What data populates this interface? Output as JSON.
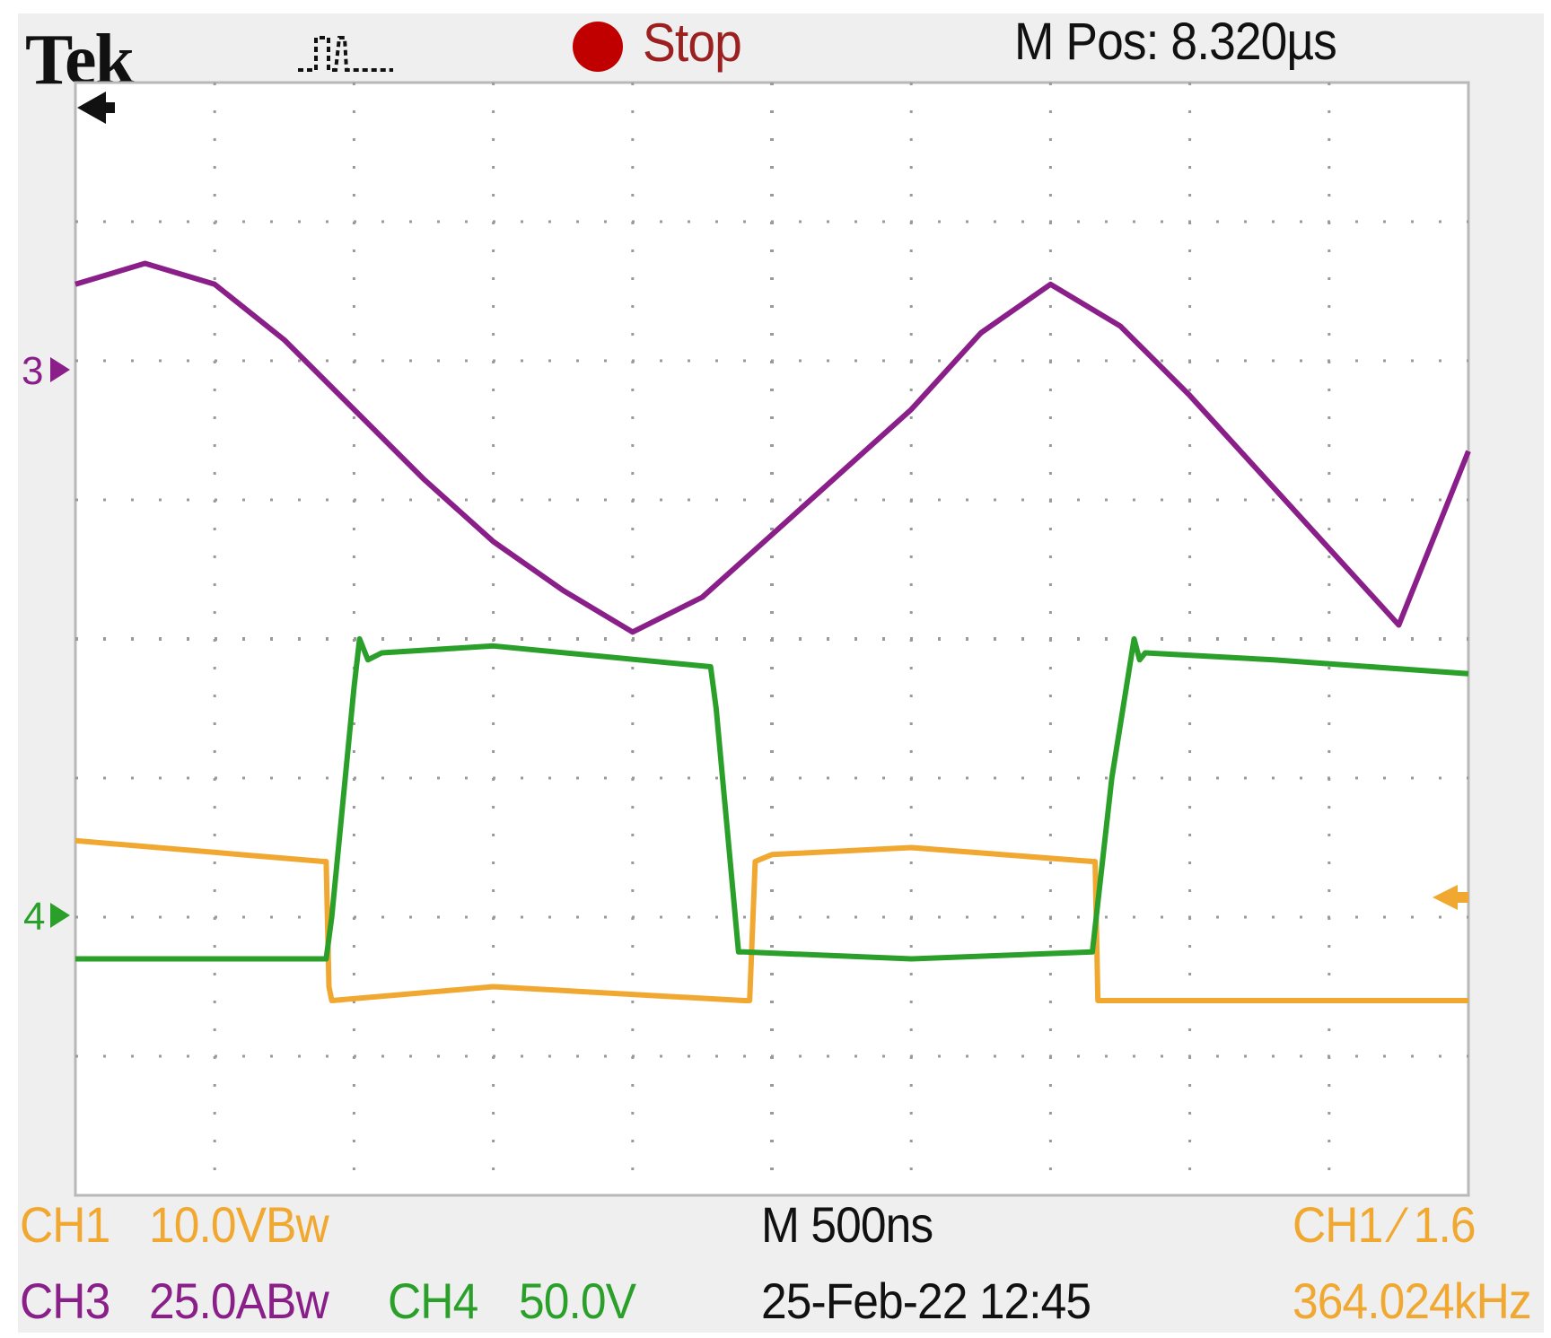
{
  "header": {
    "brand": "Tek",
    "acquisition_icon": "pulse-waveform-icon",
    "run_state": "Stop",
    "run_state_color": "#c00000",
    "horizontal_position": "M Pos: 8.320µs"
  },
  "footer": {
    "ch1_name": "CH1",
    "ch1_scale": "10.0VBw",
    "ch3_name": "CH3",
    "ch3_scale": "25.0ABw",
    "ch4_name": "CH4",
    "ch4_scale": "50.0V",
    "timebase": "M 500ns",
    "datetime": "25-Feb-22 12:45",
    "trigger": "CH1 ∕ 1.6",
    "frequency": "364.024kHz"
  },
  "markers": {
    "ch3_marker": "3",
    "ch4_marker": "4",
    "trigger_position_icon": "left-arrow-icon",
    "trigger_level_icon": "left-pointer-icon"
  },
  "colors": {
    "ch1": "#f0a830",
    "ch3": "#8a1f8a",
    "ch4": "#2aa02a",
    "grid": "#9a9a9a",
    "screen": "#ffffff",
    "bezel": "#efefef"
  },
  "chart_data": {
    "type": "line",
    "title": "",
    "xlabel": "",
    "ylabel": "",
    "x_unit": "ns",
    "y_unit": "div",
    "xlim": [
      0,
      5000
    ],
    "ylim": [
      -4,
      4
    ],
    "grid": true,
    "series": [
      {
        "name": "CH3",
        "color": "#8a1f8a",
        "x": [
          0,
          250,
          500,
          750,
          1000,
          1250,
          1500,
          1750,
          2000,
          2250,
          2500,
          2750,
          3000,
          3250,
          3500,
          3750,
          4000,
          4250,
          4500,
          4750,
          5000
        ],
        "y": [
          2.55,
          2.7,
          2.55,
          2.15,
          1.65,
          1.15,
          0.7,
          0.35,
          0.05,
          0.3,
          0.75,
          1.2,
          1.65,
          2.2,
          2.55,
          2.25,
          1.75,
          1.2,
          0.65,
          0.1,
          1.35
        ]
      },
      {
        "name": "CH1",
        "color": "#f0a830",
        "x": [
          0,
          890,
          900,
          910,
          920,
          1500,
          2400,
          2420,
          2440,
          2500,
          3000,
          3650,
          3660,
          3670,
          3680,
          4300,
          5000
        ],
        "y": [
          -1.45,
          -1.6,
          -1.6,
          -2.5,
          -2.6,
          -2.5,
          -2.6,
          -2.6,
          -1.6,
          -1.55,
          -1.5,
          -1.6,
          -1.6,
          -2.6,
          -2.6,
          -2.6,
          -2.6
        ]
      },
      {
        "name": "CH4",
        "color": "#2aa02a",
        "x": [
          0,
          900,
          920,
          1000,
          1020,
          1050,
          1100,
          1500,
          2280,
          2300,
          2380,
          2400,
          3000,
          3650,
          3720,
          3800,
          3820,
          3840,
          4300,
          5000
        ],
        "y": [
          -2.3,
          -2.3,
          -2.0,
          -0.35,
          0.0,
          -0.15,
          -0.1,
          -0.05,
          -0.2,
          -0.5,
          -2.25,
          -2.25,
          -2.3,
          -2.25,
          -1.0,
          0.0,
          -0.15,
          -0.1,
          -0.15,
          -0.25
        ]
      }
    ]
  }
}
